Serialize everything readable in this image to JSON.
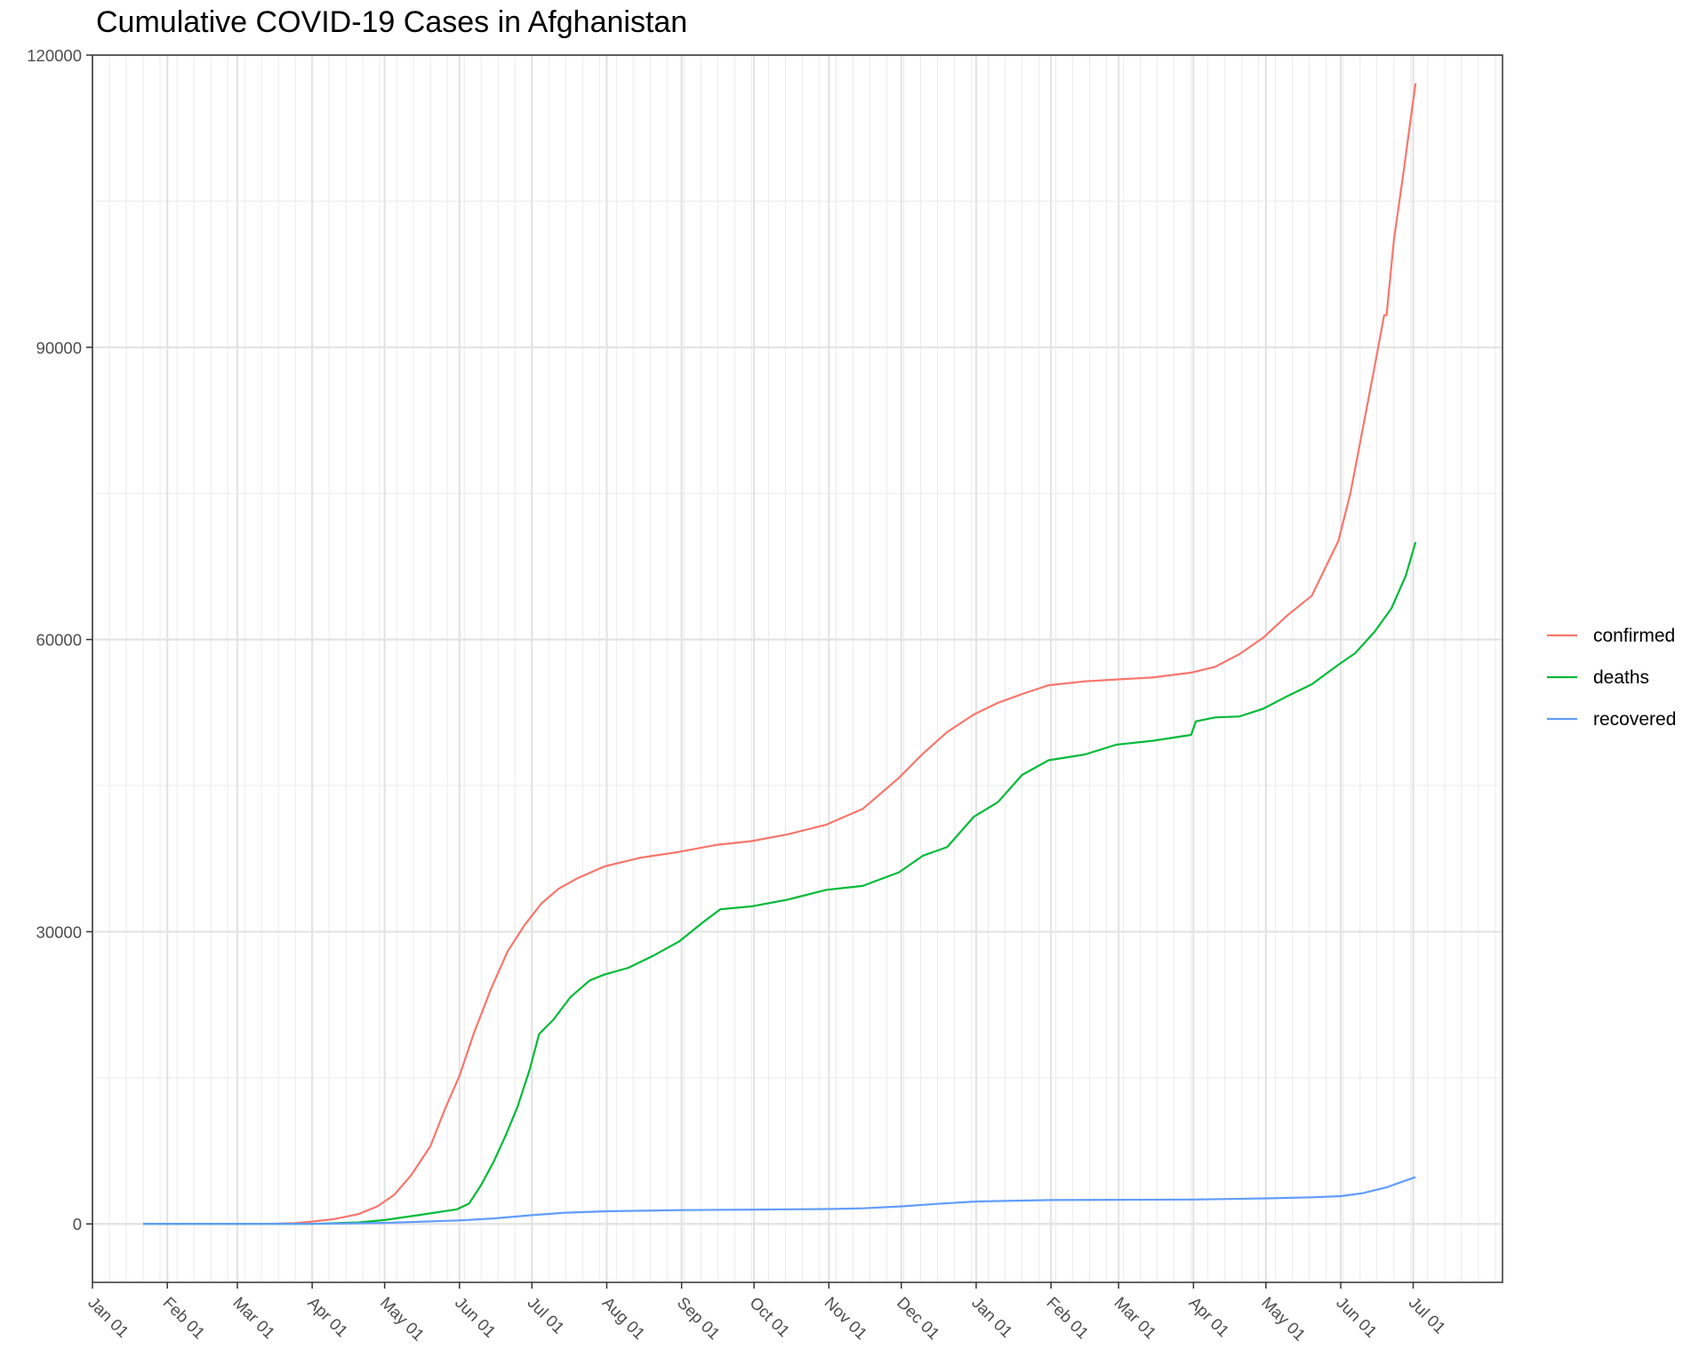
{
  "chart_data": {
    "type": "line",
    "title": "Cumulative COVID-19 Cases in Afghanistan",
    "xlabel": "",
    "ylabel": "",
    "x_axis": {
      "kind": "date",
      "range": [
        "2020-01-01",
        "2021-08-07"
      ],
      "tick_labels": [
        "Jan 01",
        "Feb 01",
        "Mar 01",
        "Apr 01",
        "May 01",
        "Jun 01",
        "Jul 01",
        "Aug 01",
        "Sep 01",
        "Oct 01",
        "Nov 01",
        "Dec 01",
        "Jan 01",
        "Feb 01",
        "Mar 01",
        "Apr 01",
        "May 01",
        "Jun 01",
        "Jul 01"
      ],
      "tick_dates": [
        "2020-01-01",
        "2020-02-01",
        "2020-03-01",
        "2020-04-01",
        "2020-05-01",
        "2020-06-01",
        "2020-07-01",
        "2020-08-01",
        "2020-09-01",
        "2020-10-01",
        "2020-11-01",
        "2020-12-01",
        "2021-01-01",
        "2021-02-01",
        "2021-03-01",
        "2021-04-01",
        "2021-05-01",
        "2021-06-01",
        "2021-07-01"
      ],
      "tick_label_rotation": "-45deg",
      "minor_grid": "weekly"
    },
    "y_axis": {
      "ylim": [
        -6000,
        120000
      ],
      "ticks": [
        0,
        30000,
        60000,
        90000,
        120000
      ],
      "tick_labels": [
        "0",
        "30000",
        "60000",
        "90000",
        "120000"
      ]
    },
    "grid": true,
    "legend": {
      "position": "right",
      "show": true
    },
    "series": [
      {
        "name": "confirmed",
        "color": "#F8766D",
        "points": [
          [
            "2020-01-22",
            0
          ],
          [
            "2020-02-24",
            1
          ],
          [
            "2020-03-15",
            16
          ],
          [
            "2020-03-25",
            84
          ],
          [
            "2020-04-01",
            240
          ],
          [
            "2020-04-10",
            500
          ],
          [
            "2020-04-20",
            1000
          ],
          [
            "2020-04-28",
            1800
          ],
          [
            "2020-05-05",
            3000
          ],
          [
            "2020-05-12",
            5000
          ],
          [
            "2020-05-20",
            8000
          ],
          [
            "2020-05-26",
            11800
          ],
          [
            "2020-06-01",
            15200
          ],
          [
            "2020-06-07",
            19600
          ],
          [
            "2020-06-14",
            24100
          ],
          [
            "2020-06-21",
            28000
          ],
          [
            "2020-06-28",
            30700
          ],
          [
            "2020-07-05",
            32900
          ],
          [
            "2020-07-12",
            34400
          ],
          [
            "2020-07-20",
            35500
          ],
          [
            "2020-07-31",
            36700
          ],
          [
            "2020-08-15",
            37600
          ],
          [
            "2020-08-31",
            38200
          ],
          [
            "2020-09-15",
            38900
          ],
          [
            "2020-09-30",
            39300
          ],
          [
            "2020-10-15",
            40000
          ],
          [
            "2020-10-31",
            41000
          ],
          [
            "2020-11-15",
            42600
          ],
          [
            "2020-11-30",
            45800
          ],
          [
            "2020-12-10",
            48300
          ],
          [
            "2020-12-20",
            50500
          ],
          [
            "2020-12-31",
            52300
          ],
          [
            "2021-01-10",
            53500
          ],
          [
            "2021-01-20",
            54400
          ],
          [
            "2021-01-31",
            55300
          ],
          [
            "2021-02-15",
            55700
          ],
          [
            "2021-02-28",
            55900
          ],
          [
            "2021-03-15",
            56100
          ],
          [
            "2021-03-31",
            56600
          ],
          [
            "2021-04-10",
            57200
          ],
          [
            "2021-04-20",
            58500
          ],
          [
            "2021-04-30",
            60200
          ],
          [
            "2021-05-10",
            62500
          ],
          [
            "2021-05-20",
            64500
          ],
          [
            "2021-05-31",
            70100
          ],
          [
            "2021-06-05",
            75000
          ],
          [
            "2021-06-10",
            81500
          ],
          [
            "2021-06-15",
            88000
          ],
          [
            "2021-06-19",
            93300
          ],
          [
            "2021-06-20",
            93300
          ],
          [
            "2021-06-23",
            101000
          ],
          [
            "2021-06-27",
            108000
          ],
          [
            "2021-06-30",
            113500
          ],
          [
            "2021-07-02",
            117100
          ]
        ]
      },
      {
        "name": "deaths",
        "color": "#00BA38",
        "points": [
          [
            "2020-01-22",
            0
          ],
          [
            "2020-04-01",
            0
          ],
          [
            "2020-04-20",
            150
          ],
          [
            "2020-05-01",
            400
          ],
          [
            "2020-05-15",
            900
          ],
          [
            "2020-05-31",
            1500
          ],
          [
            "2020-06-05",
            2100
          ],
          [
            "2020-06-10",
            4000
          ],
          [
            "2020-06-15",
            6300
          ],
          [
            "2020-06-20",
            9000
          ],
          [
            "2020-06-25",
            12000
          ],
          [
            "2020-06-30",
            15800
          ],
          [
            "2020-07-04",
            19500
          ],
          [
            "2020-07-10",
            21000
          ],
          [
            "2020-07-17",
            23300
          ],
          [
            "2020-07-25",
            25000
          ],
          [
            "2020-07-31",
            25600
          ],
          [
            "2020-08-10",
            26300
          ],
          [
            "2020-08-20",
            27500
          ],
          [
            "2020-08-31",
            29000
          ],
          [
            "2020-09-10",
            31000
          ],
          [
            "2020-09-17",
            32300
          ],
          [
            "2020-09-30",
            32600
          ],
          [
            "2020-10-15",
            33300
          ],
          [
            "2020-10-31",
            34300
          ],
          [
            "2020-11-15",
            34700
          ],
          [
            "2020-11-30",
            36100
          ],
          [
            "2020-12-10",
            37800
          ],
          [
            "2020-12-20",
            38700
          ],
          [
            "2020-12-31",
            41800
          ],
          [
            "2021-01-10",
            43300
          ],
          [
            "2021-01-20",
            46100
          ],
          [
            "2021-01-31",
            47600
          ],
          [
            "2021-02-15",
            48200
          ],
          [
            "2021-02-28",
            49200
          ],
          [
            "2021-03-15",
            49600
          ],
          [
            "2021-03-31",
            50200
          ],
          [
            "2021-04-02",
            51600
          ],
          [
            "2021-04-10",
            52000
          ],
          [
            "2021-04-20",
            52100
          ],
          [
            "2021-04-30",
            52900
          ],
          [
            "2021-05-10",
            54200
          ],
          [
            "2021-05-20",
            55400
          ],
          [
            "2021-05-31",
            57400
          ],
          [
            "2021-06-07",
            58600
          ],
          [
            "2021-06-15",
            60800
          ],
          [
            "2021-06-22",
            63200
          ],
          [
            "2021-06-28",
            66600
          ],
          [
            "2021-07-02",
            70000
          ]
        ]
      },
      {
        "name": "recovered",
        "color": "#619CFF",
        "points": [
          [
            "2020-01-22",
            0
          ],
          [
            "2020-04-01",
            5
          ],
          [
            "2020-05-01",
            100
          ],
          [
            "2020-06-01",
            360
          ],
          [
            "2020-06-15",
            560
          ],
          [
            "2020-07-01",
            900
          ],
          [
            "2020-07-15",
            1150
          ],
          [
            "2020-08-01",
            1300
          ],
          [
            "2020-09-01",
            1420
          ],
          [
            "2020-10-01",
            1470
          ],
          [
            "2020-11-01",
            1530
          ],
          [
            "2020-11-15",
            1600
          ],
          [
            "2020-12-01",
            1800
          ],
          [
            "2020-12-15",
            2050
          ],
          [
            "2021-01-01",
            2300
          ],
          [
            "2021-02-01",
            2450
          ],
          [
            "2021-03-01",
            2480
          ],
          [
            "2021-04-01",
            2500
          ],
          [
            "2021-05-01",
            2620
          ],
          [
            "2021-05-20",
            2730
          ],
          [
            "2021-06-01",
            2850
          ],
          [
            "2021-06-10",
            3150
          ],
          [
            "2021-06-20",
            3750
          ],
          [
            "2021-06-25",
            4200
          ],
          [
            "2021-07-02",
            4800
          ]
        ]
      }
    ]
  }
}
